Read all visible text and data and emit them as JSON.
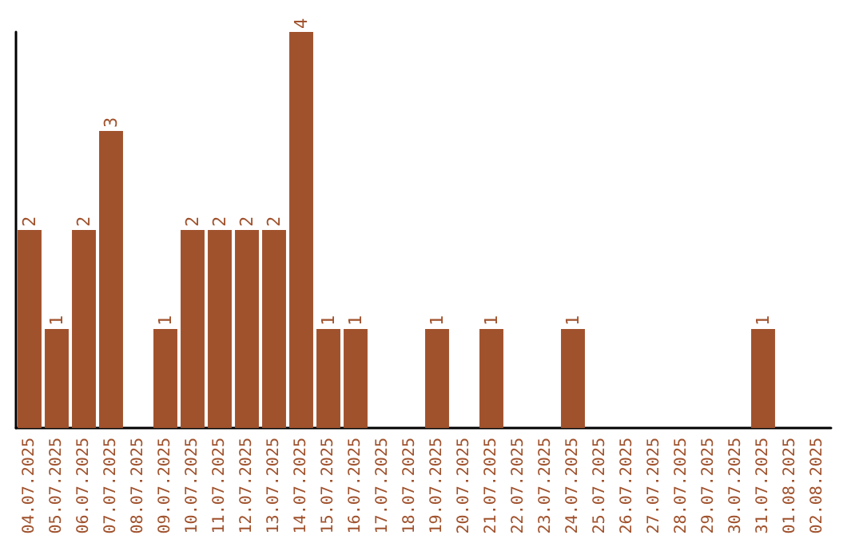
{
  "chart_data": {
    "type": "bar",
    "categories": [
      "04.07.2025",
      "05.07.2025",
      "06.07.2025",
      "07.07.2025",
      "08.07.2025",
      "09.07.2025",
      "10.07.2025",
      "11.07.2025",
      "12.07.2025",
      "13.07.2025",
      "14.07.2025",
      "15.07.2025",
      "16.07.2025",
      "17.07.2025",
      "18.07.2025",
      "19.07.2025",
      "20.07.2025",
      "21.07.2025",
      "22.07.2025",
      "23.07.2025",
      "24.07.2025",
      "25.07.2025",
      "26.07.2025",
      "27.07.2025",
      "28.07.2025",
      "29.07.2025",
      "30.07.2025",
      "31.07.2025",
      "01.08.2025",
      "02.08.2025"
    ],
    "values": [
      2,
      1,
      2,
      3,
      0,
      1,
      2,
      2,
      2,
      2,
      4,
      1,
      1,
      0,
      0,
      1,
      0,
      1,
      0,
      0,
      1,
      0,
      0,
      0,
      0,
      0,
      0,
      1,
      0,
      0
    ],
    "value_labels": [
      "2",
      "1",
      "2",
      "3",
      null,
      "1",
      "2",
      "2",
      "2",
      "2",
      "4",
      "1",
      "1",
      null,
      null,
      "1",
      null,
      "1",
      null,
      null,
      "1",
      null,
      null,
      null,
      null,
      null,
      null,
      "1",
      null,
      null
    ],
    "color": "#a0522d",
    "tick_labels": "x"
  }
}
